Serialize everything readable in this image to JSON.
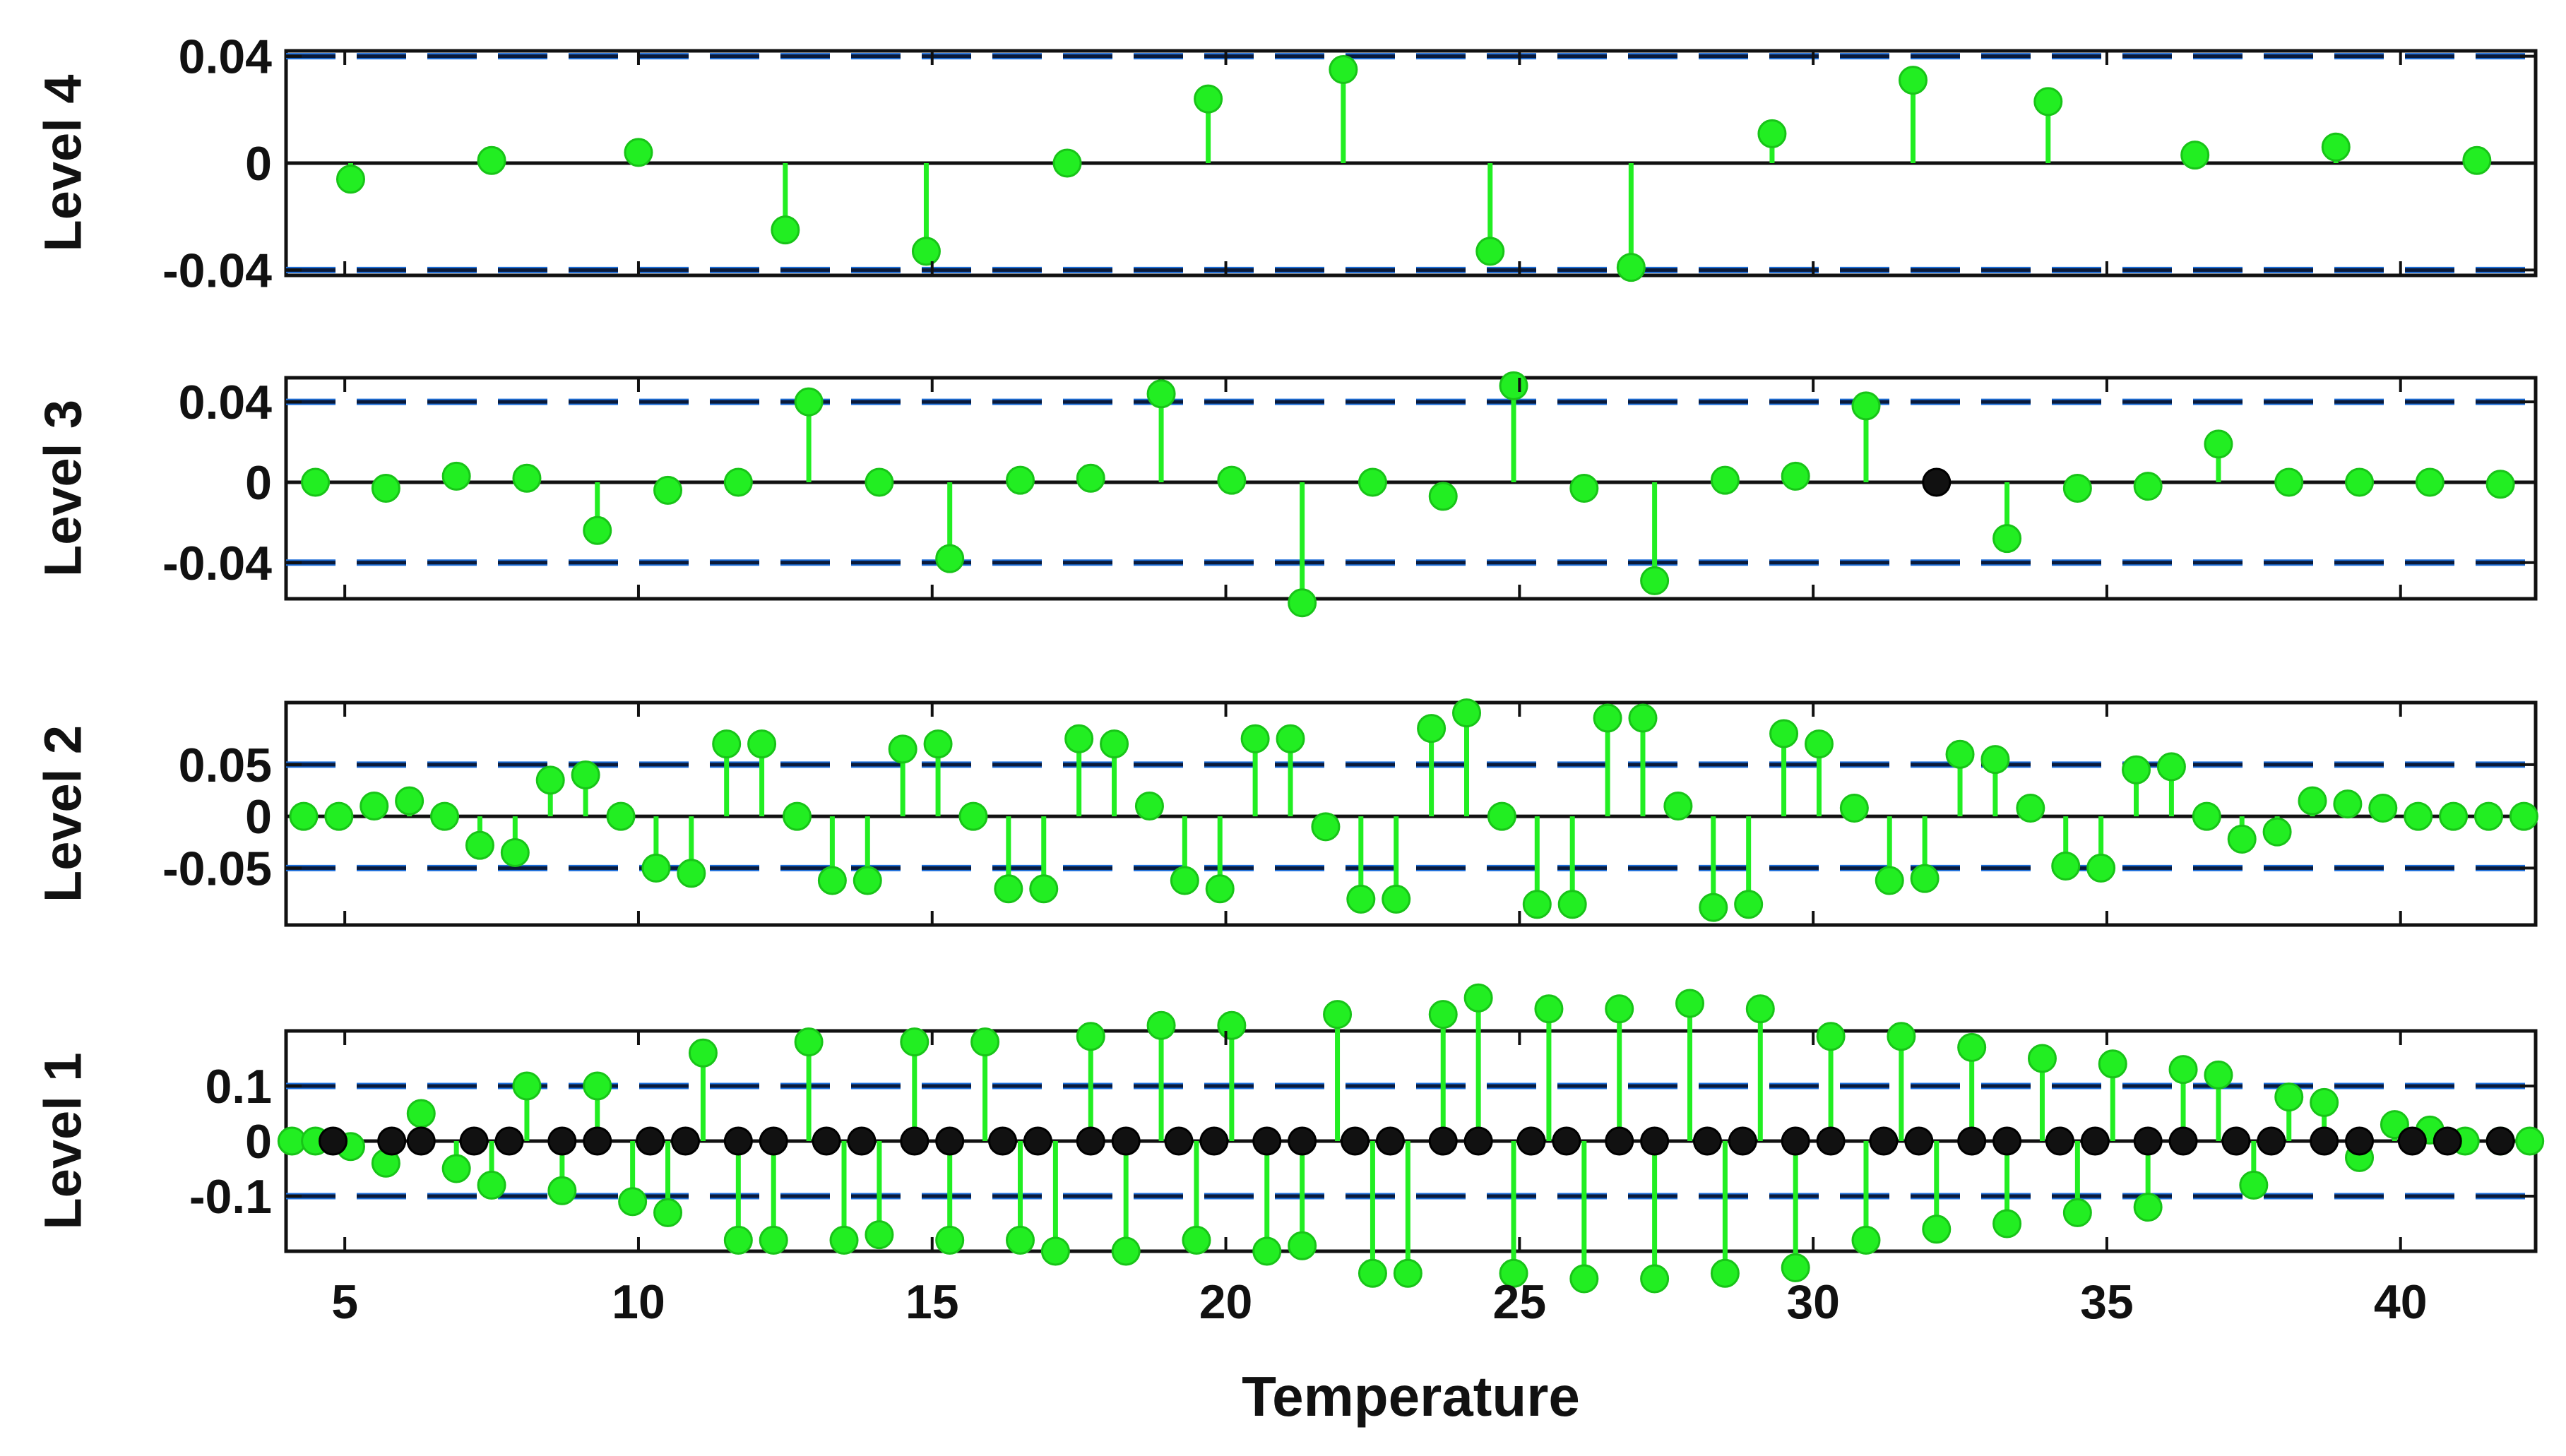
{
  "chart_data": [
    {
      "type": "stem",
      "ylabel": "Level 4",
      "xlim": [
        4,
        42.3
      ],
      "ylim": [
        -0.042,
        0.042
      ],
      "yticks": [
        {
          "v": 0.04,
          "label": "0.04"
        },
        {
          "v": 0,
          "label": "0"
        },
        {
          "v": -0.04,
          "label": "-0.04"
        }
      ],
      "thresholds": [
        0.04,
        -0.04
      ],
      "series": [
        {
          "color": "#22ee22",
          "x": [
            5.1,
            7.5,
            10.0,
            12.5,
            14.9,
            17.3,
            19.7,
            22.0,
            24.5,
            26.9,
            29.3,
            31.7,
            34.0,
            36.5,
            38.9,
            41.3
          ],
          "y": [
            -0.006,
            0.001,
            0.004,
            -0.025,
            -0.033,
            0.0,
            0.024,
            0.035,
            -0.033,
            -0.039,
            0.011,
            0.031,
            0.023,
            0.003,
            0.006,
            0.001
          ]
        }
      ]
    },
    {
      "type": "stem",
      "ylabel": "Level 3",
      "xlim": [
        4,
        42.3
      ],
      "ylim": [
        -0.058,
        0.052
      ],
      "yticks": [
        {
          "v": 0.04,
          "label": "0.04"
        },
        {
          "v": 0,
          "label": "0"
        },
        {
          "v": -0.04,
          "label": "-0.04"
        }
      ],
      "thresholds": [
        0.04,
        -0.04
      ],
      "series": [
        {
          "color": "#22ee22",
          "x": [
            4.5,
            5.7,
            6.9,
            8.1,
            9.3,
            10.5,
            11.7,
            12.9,
            14.1,
            15.3,
            16.5,
            17.7,
            18.9,
            20.1,
            21.3,
            22.5,
            23.7,
            24.9,
            26.1,
            27.3,
            28.5,
            29.7,
            30.9,
            33.3,
            34.5,
            35.7,
            36.9,
            38.1,
            39.3,
            40.5,
            41.7
          ],
          "y": [
            0.0,
            -0.003,
            0.003,
            0.002,
            -0.024,
            -0.004,
            0.0,
            0.04,
            0.0,
            -0.038,
            0.001,
            0.002,
            0.044,
            0.001,
            -0.06,
            0.0,
            -0.007,
            0.048,
            -0.003,
            -0.049,
            0.001,
            0.003,
            0.038,
            -0.028,
            -0.003,
            -0.002,
            0.019,
            0.0,
            0.0,
            0.0,
            -0.001
          ]
        },
        {
          "color": "#111111",
          "x": [
            32.1
          ],
          "y": [
            0.0
          ]
        }
      ]
    },
    {
      "type": "stem",
      "ylabel": "Level 2",
      "xlim": [
        4,
        42.3
      ],
      "ylim": [
        -0.105,
        0.11
      ],
      "yticks": [
        {
          "v": 0.05,
          "label": "0.05"
        },
        {
          "v": 0,
          "label": "0"
        },
        {
          "v": -0.05,
          "label": "-0.05"
        }
      ],
      "thresholds": [
        0.05,
        -0.05
      ],
      "series": [
        {
          "color": "#22ee22",
          "x": [
            4.3,
            4.9,
            5.5,
            6.1,
            6.7,
            7.3,
            7.9,
            8.5,
            9.1,
            9.7,
            10.3,
            10.9,
            11.5,
            12.1,
            12.7,
            13.3,
            13.9,
            14.5,
            15.1,
            15.7,
            16.3,
            16.9,
            17.5,
            18.1,
            18.7,
            19.3,
            19.9,
            20.5,
            21.1,
            21.7,
            22.3,
            22.9,
            23.5,
            24.1,
            24.7,
            25.3,
            25.9,
            26.5,
            27.1,
            27.7,
            28.3,
            28.9,
            29.5,
            30.1,
            30.7,
            31.3,
            31.9,
            32.5,
            33.1,
            33.7,
            34.3,
            34.9,
            35.5,
            36.1,
            36.7,
            37.3,
            37.9,
            38.5,
            39.1,
            39.7,
            40.3,
            40.9,
            41.5,
            42.1
          ],
          "y": [
            0.0,
            0.0,
            0.01,
            0.015,
            0.0,
            -0.028,
            -0.035,
            0.035,
            0.04,
            0.0,
            -0.05,
            -0.055,
            0.07,
            0.07,
            0.0,
            -0.062,
            -0.062,
            0.065,
            0.07,
            0.0,
            -0.07,
            -0.07,
            0.075,
            0.07,
            0.01,
            -0.062,
            -0.07,
            0.075,
            0.075,
            -0.01,
            -0.08,
            -0.08,
            0.085,
            0.1,
            0.0,
            -0.085,
            -0.085,
            0.095,
            0.095,
            0.01,
            -0.088,
            -0.085,
            0.08,
            0.07,
            0.008,
            -0.062,
            -0.06,
            0.06,
            0.055,
            0.008,
            -0.048,
            -0.05,
            0.045,
            0.048,
            0.0,
            -0.022,
            -0.015,
            0.015,
            0.012,
            0.008,
            0.0,
            0.0,
            0.0,
            0.0
          ]
        }
      ]
    },
    {
      "type": "stem",
      "ylabel": "Level 1",
      "xlim": [
        4,
        42.3
      ],
      "ylim": [
        -0.2,
        0.2
      ],
      "yticks": [
        {
          "v": 0.1,
          "label": "0.1"
        },
        {
          "v": 0,
          "label": "0"
        },
        {
          "v": -0.1,
          "label": "-0.1"
        }
      ],
      "thresholds": [
        0.1,
        -0.1
      ],
      "xticks": [
        {
          "v": 5,
          "label": "5"
        },
        {
          "v": 10,
          "label": "10"
        },
        {
          "v": 15,
          "label": "15"
        },
        {
          "v": 20,
          "label": "20"
        },
        {
          "v": 25,
          "label": "25"
        },
        {
          "v": 30,
          "label": "30"
        },
        {
          "v": 35,
          "label": "35"
        },
        {
          "v": 40,
          "label": "40"
        }
      ],
      "xlabel": "Temperature",
      "series": [
        {
          "color": "#22ee22",
          "x": [
            4.1,
            4.5,
            5.1,
            5.7,
            6.3,
            6.9,
            7.5,
            8.1,
            8.7,
            9.3,
            9.9,
            10.5,
            11.1,
            11.7,
            12.3,
            12.9,
            13.5,
            14.1,
            14.7,
            15.3,
            15.9,
            16.5,
            17.1,
            17.7,
            18.3,
            18.9,
            19.5,
            20.1,
            20.7,
            21.3,
            21.9,
            22.5,
            23.1,
            23.7,
            24.3,
            24.9,
            25.5,
            26.1,
            26.7,
            27.3,
            27.9,
            28.5,
            29.1,
            29.7,
            30.3,
            30.9,
            31.5,
            32.1,
            32.7,
            33.3,
            33.9,
            34.5,
            35.1,
            35.7,
            36.3,
            36.9,
            37.5,
            38.1,
            38.7,
            39.3,
            39.9,
            40.5,
            41.1,
            41.7,
            42.2
          ],
          "y": [
            0.0,
            0.0,
            -0.01,
            -0.04,
            0.05,
            -0.05,
            -0.08,
            0.1,
            -0.09,
            0.1,
            -0.11,
            -0.13,
            0.16,
            -0.18,
            -0.18,
            0.18,
            -0.18,
            -0.17,
            0.18,
            -0.18,
            0.18,
            -0.18,
            -0.2,
            0.19,
            -0.2,
            0.21,
            -0.18,
            0.21,
            -0.2,
            -0.19,
            0.23,
            -0.24,
            -0.24,
            0.23,
            0.26,
            -0.24,
            0.24,
            -0.25,
            0.24,
            -0.25,
            0.25,
            -0.24,
            0.24,
            -0.23,
            0.19,
            -0.18,
            0.19,
            -0.16,
            0.17,
            -0.15,
            0.15,
            -0.13,
            0.14,
            -0.12,
            0.13,
            0.12,
            -0.08,
            0.08,
            0.07,
            -0.03,
            0.03,
            0.02,
            0.0,
            0.0,
            0.0
          ]
        },
        {
          "color": "#111111",
          "x": [
            4.8,
            5.8,
            6.3,
            7.2,
            7.8,
            8.7,
            9.3,
            10.2,
            10.8,
            11.7,
            12.3,
            13.2,
            13.8,
            14.7,
            15.3,
            16.2,
            16.8,
            17.7,
            18.3,
            19.2,
            19.8,
            20.7,
            21.3,
            22.2,
            22.8,
            23.7,
            24.3,
            25.2,
            25.8,
            26.7,
            27.3,
            28.2,
            28.8,
            29.7,
            30.3,
            31.2,
            31.8,
            32.7,
            33.3,
            34.2,
            34.8,
            35.7,
            36.3,
            37.2,
            37.8,
            38.7,
            39.3,
            40.2,
            40.8,
            41.7
          ],
          "y": [
            0,
            0,
            0,
            0,
            0,
            0,
            0,
            0,
            0,
            0,
            0,
            0,
            0,
            0,
            0,
            0,
            0,
            0,
            0,
            0,
            0,
            0,
            0,
            0,
            0,
            0,
            0,
            0,
            0,
            0,
            0,
            0,
            0,
            0,
            0,
            0,
            0,
            0,
            0,
            0,
            0,
            0,
            0,
            0,
            0,
            0,
            0,
            0,
            0,
            0
          ]
        }
      ]
    }
  ]
}
